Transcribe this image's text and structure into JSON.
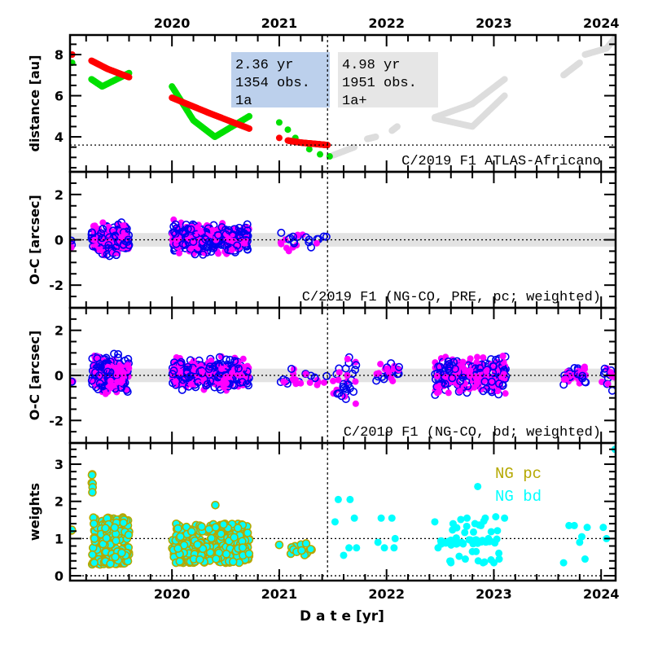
{
  "chart_data": {
    "type": "scatter",
    "xlabel": "D a t e [yr]",
    "x_ticks": [
      2020,
      2021,
      2022,
      2023,
      2024
    ],
    "x_tick_labels": [
      "2020",
      "2021",
      "2022",
      "2023",
      "2024"
    ],
    "xlim": [
      2019.05,
      2024.135
    ],
    "boundary_date": 2021.45,
    "panels": [
      {
        "id": "distance",
        "ylabel": "distance [au]",
        "ylim": [
          2.3,
          8.95
        ],
        "y_ticks": [
          4,
          6,
          8
        ],
        "y_tick_labels": [
          "4",
          "6",
          "8"
        ],
        "hline": 3.6,
        "title": "C/2019 F1 ATLAS-Africano",
        "boxes": [
          {
            "lines": [
              "2.36 yr",
              "1354 obs.",
              "1a"
            ],
            "color": "#bcd0ec"
          },
          {
            "lines": [
              "4.98 yr",
              "1951 obs.",
              "1a+"
            ],
            "color": "#e6e6e6"
          }
        ],
        "tracks": [
          {
            "name": "heliocentric-pre",
            "color": "#ff0000",
            "x": [
              2019.07,
              2019.25,
              2019.4,
              2019.6,
              2020.0,
              2020.35,
              2020.72,
              2021.0,
              2021.08,
              2021.2,
              2021.35,
              2021.45
            ],
            "y": [
              8.0,
              7.7,
              7.3,
              6.9,
              5.9,
              5.15,
              4.4,
              3.95,
              3.82,
              3.72,
              3.65,
              3.6
            ],
            "gaps_after": [
              0,
              3,
              6,
              7
            ]
          },
          {
            "name": "geocentric-pre",
            "color": "#00e000",
            "x": [
              2019.07,
              2019.25,
              2019.35,
              2019.6,
              2020.0,
              2020.2,
              2020.4,
              2020.72,
              2021.0,
              2021.08,
              2021.15,
              2021.28,
              2021.38,
              2021.47
            ],
            "y": [
              7.6,
              6.8,
              6.45,
              7.1,
              6.45,
              4.8,
              4.0,
              5.0,
              4.7,
              4.35,
              3.95,
              3.4,
              3.15,
              3.05
            ],
            "gaps_after": [
              0,
              3,
              7,
              8,
              9,
              10,
              11,
              12
            ]
          },
          {
            "name": "post-perihelion",
            "color": "#dddddd",
            "x": [
              2021.5,
              2021.7,
              2021.82,
              2021.9,
              2022.05,
              2022.1,
              2022.45,
              2022.8,
              2023.1,
              2022.45,
              2022.8,
              2023.1,
              2023.65,
              2023.8,
              2023.85,
              2024.05,
              2024.13
            ],
            "y": [
              3.1,
              3.5,
              3.9,
              4.0,
              4.3,
              4.5,
              4.9,
              4.5,
              6.0,
              4.95,
              5.6,
              6.8,
              7.0,
              7.6,
              8.0,
              8.3,
              8.8
            ],
            "gaps_after": [
              1,
              3,
              5,
              8,
              11,
              13
            ]
          }
        ]
      },
      {
        "id": "oc-pre",
        "ylabel": "O-C [arcsec]",
        "ylim": [
          -3,
          3
        ],
        "y_ticks": [
          -2,
          0,
          2
        ],
        "y_tick_labels": [
          "-2",
          "0",
          "2"
        ],
        "band": 0.3,
        "title": "C/2019 F1 (NG-CO, PRE, pc; weighted)",
        "clusters": [
          {
            "x": [
              2019.06,
              2019.08
            ],
            "y": [
              -0.45,
              0.1
            ],
            "n": 4
          },
          {
            "x": [
              2019.25,
              2019.6
            ],
            "y": [
              -0.9,
              0.9
            ],
            "n": 260
          },
          {
            "x": [
              2020.0,
              2020.72
            ],
            "y": [
              -0.8,
              0.95
            ],
            "n": 420
          },
          {
            "x": [
              2021.0,
              2021.45
            ],
            "y": [
              -0.7,
              0.55
            ],
            "n": 26
          }
        ]
      },
      {
        "id": "oc-bd",
        "ylabel": "O-C [arcsec]",
        "ylim": [
          -3,
          3
        ],
        "y_ticks": [
          -2,
          0,
          2
        ],
        "y_tick_labels": [
          "-2",
          "0",
          "2"
        ],
        "band": 0.3,
        "title": "C/2019 F1 (NG-CO, bd; weighted)",
        "clusters": [
          {
            "x": [
              2019.06,
              2019.08
            ],
            "y": [
              -0.4,
              -0.2
            ],
            "n": 3
          },
          {
            "x": [
              2019.25,
              2019.6
            ],
            "y": [
              -1.0,
              1.1
            ],
            "n": 260
          },
          {
            "x": [
              2020.0,
              2020.72
            ],
            "y": [
              -0.8,
              0.95
            ],
            "n": 420
          },
          {
            "x": [
              2021.0,
              2021.45
            ],
            "y": [
              -0.7,
              0.45
            ],
            "n": 26
          },
          {
            "x": [
              2021.5,
              2021.72
            ],
            "y": [
              -1.9,
              1.45
            ],
            "n": 34
          },
          {
            "x": [
              2021.9,
              2022.12
            ],
            "y": [
              -0.5,
              0.8
            ],
            "n": 26
          },
          {
            "x": [
              2022.45,
              2023.12
            ],
            "y": [
              -1.1,
              1.1
            ],
            "n": 260
          },
          {
            "x": [
              2023.65,
              2023.87
            ],
            "y": [
              -0.7,
              0.7
            ],
            "n": 36
          },
          {
            "x": [
              2024.0,
              2024.13
            ],
            "y": [
              -0.8,
              0.85
            ],
            "n": 16
          }
        ]
      },
      {
        "id": "weights",
        "ylabel": "weights",
        "ylim": [
          -0.13,
          3.57
        ],
        "y_ticks": [
          0,
          1,
          2,
          3
        ],
        "y_tick_labels": [
          "0",
          "1",
          "2",
          "3"
        ],
        "hlines": [
          0,
          1
        ],
        "legend": [
          {
            "label": "NG pc",
            "color": "#b5a800"
          },
          {
            "label": "NG bd",
            "color": "#00ffff"
          }
        ],
        "legend_position": "top-right",
        "pc_clusters": [
          {
            "x": [
              2019.06,
              2019.08
            ],
            "y": [
              1.15,
              1.25
            ],
            "n": 2
          },
          {
            "x": [
              2019.25,
              2019.28
            ],
            "y": [
              2.2,
              2.75
            ],
            "n": 6
          },
          {
            "x": [
              2019.25,
              2019.6
            ],
            "y": [
              0.3,
              1.6
            ],
            "n": 200
          },
          {
            "x": [
              2020.0,
              2020.72
            ],
            "y": [
              0.35,
              1.4
            ],
            "n": 320
          },
          {
            "x": [
              2020.4,
              2020.42
            ],
            "y": [
              1.9,
              1.9
            ],
            "n": 1
          },
          {
            "x": [
              2021.0,
              2021.45
            ],
            "y": [
              0.55,
              0.9
            ],
            "n": 14
          }
        ],
        "bd_points": {
          "x": [
            2021.52,
            2021.55,
            2021.6,
            2021.65,
            2021.66,
            2021.7,
            2021.72,
            2021.92,
            2021.95,
            2021.98,
            2022.05,
            2022.07,
            2022.08,
            2022.45,
            2022.48,
            2022.6,
            2022.62,
            2022.7,
            2022.75,
            2022.8,
            2022.85,
            2022.88,
            2022.9,
            2022.92,
            2022.95,
            2023.0,
            2023.05,
            2023.1,
            2023.65,
            2023.7,
            2023.75,
            2023.8,
            2023.82,
            2023.85,
            2023.87,
            2024.02,
            2024.05,
            2024.13
          ],
          "y": [
            1.45,
            2.05,
            0.55,
            0.75,
            2.05,
            1.55,
            0.75,
            0.9,
            1.55,
            0.75,
            1.55,
            0.75,
            1.0,
            1.45,
            0.75,
            0.35,
            1.4,
            0.9,
            1.55,
            0.65,
            2.4,
            1.35,
            0.35,
            1.55,
            1.0,
            0.35,
            0.45,
            1.55,
            0.35,
            1.35,
            1.35,
            0.9,
            1.05,
            0.45,
            1.3,
            1.3,
            1.0,
            3.4
          ],
          "cluster": {
            "x": [
              2022.5,
              2023.05
            ],
            "y": [
              0.35,
              1.6
            ],
            "n": 60
          }
        }
      }
    ]
  }
}
